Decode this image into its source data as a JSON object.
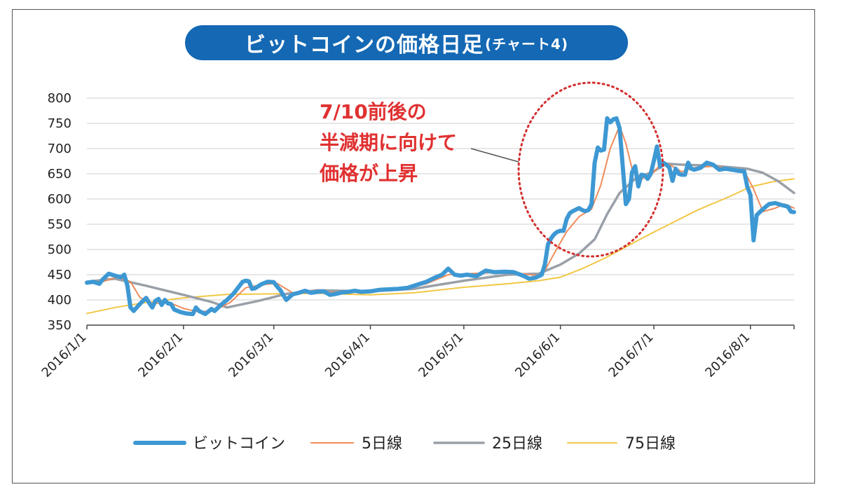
{
  "header": {
    "title": "ビットコインの価格日足",
    "subtitle": "(チャート4)",
    "color": "#1468b4"
  },
  "annotation": {
    "lines": [
      "7/10前後の",
      "半減期に向けて",
      "価格が上昇"
    ],
    "color": "#e03131"
  },
  "chart_data": {
    "type": "line",
    "title": "ビットコインの価格日足(チャート4)",
    "xlabel": "",
    "ylabel": "",
    "ylim": [
      350,
      800
    ],
    "yticks": [
      350,
      400,
      450,
      500,
      550,
      600,
      650,
      700,
      750,
      800
    ],
    "x_range": [
      "2016-01-01",
      "2016-08-15"
    ],
    "xticks": [
      {
        "date": "2016-01-01",
        "label": "2016/1/1"
      },
      {
        "date": "2016-02-01",
        "label": "2016/2/1"
      },
      {
        "date": "2016-03-01",
        "label": "2016/3/1"
      },
      {
        "date": "2016-04-01",
        "label": "2016/4/1"
      },
      {
        "date": "2016-05-01",
        "label": "2016/5/1"
      },
      {
        "date": "2016-06-01",
        "label": "2016/6/1"
      },
      {
        "date": "2016-07-01",
        "label": "2016/7/1"
      },
      {
        "date": "2016-08-01",
        "label": "2016/8/1"
      }
    ],
    "grid": true,
    "legend_position": "bottom",
    "series": [
      {
        "name": "ビットコイン",
        "color": "#3d98d3",
        "points": [
          [
            "2016-01-01",
            434
          ],
          [
            "2016-01-03",
            436
          ],
          [
            "2016-01-05",
            432
          ],
          [
            "2016-01-06",
            440
          ],
          [
            "2016-01-08",
            452
          ],
          [
            "2016-01-10",
            448
          ],
          [
            "2016-01-12",
            445
          ],
          [
            "2016-01-13",
            450
          ],
          [
            "2016-01-14",
            428
          ],
          [
            "2016-01-15",
            385
          ],
          [
            "2016-01-16",
            378
          ],
          [
            "2016-01-18",
            392
          ],
          [
            "2016-01-20",
            404
          ],
          [
            "2016-01-21",
            394
          ],
          [
            "2016-01-22",
            385
          ],
          [
            "2016-01-23",
            398
          ],
          [
            "2016-01-24",
            402
          ],
          [
            "2016-01-25",
            390
          ],
          [
            "2016-01-26",
            400
          ],
          [
            "2016-01-27",
            393
          ],
          [
            "2016-01-28",
            392
          ],
          [
            "2016-01-29",
            381
          ],
          [
            "2016-01-31",
            376
          ],
          [
            "2016-02-02",
            373
          ],
          [
            "2016-02-04",
            372
          ],
          [
            "2016-02-05",
            385
          ],
          [
            "2016-02-06",
            378
          ],
          [
            "2016-02-08",
            372
          ],
          [
            "2016-02-10",
            382
          ],
          [
            "2016-02-11",
            378
          ],
          [
            "2016-02-13",
            390
          ],
          [
            "2016-02-15",
            400
          ],
          [
            "2016-02-17",
            412
          ],
          [
            "2016-02-18",
            420
          ],
          [
            "2016-02-20",
            436
          ],
          [
            "2016-02-21",
            438
          ],
          [
            "2016-02-22",
            437
          ],
          [
            "2016-02-23",
            422
          ],
          [
            "2016-02-24",
            423
          ],
          [
            "2016-02-26",
            431
          ],
          [
            "2016-02-28",
            436
          ],
          [
            "2016-03-01",
            435
          ],
          [
            "2016-03-02",
            427
          ],
          [
            "2016-03-03",
            420
          ],
          [
            "2016-03-04",
            410
          ],
          [
            "2016-03-05",
            400
          ],
          [
            "2016-03-07",
            411
          ],
          [
            "2016-03-09",
            414
          ],
          [
            "2016-03-11",
            418
          ],
          [
            "2016-03-13",
            414
          ],
          [
            "2016-03-15",
            416
          ],
          [
            "2016-03-17",
            417
          ],
          [
            "2016-03-19",
            410
          ],
          [
            "2016-03-21",
            412
          ],
          [
            "2016-03-23",
            415
          ],
          [
            "2016-03-25",
            416
          ],
          [
            "2016-03-27",
            418
          ],
          [
            "2016-03-29",
            416
          ],
          [
            "2016-04-01",
            417
          ],
          [
            "2016-04-04",
            420
          ],
          [
            "2016-04-07",
            421
          ],
          [
            "2016-04-10",
            422
          ],
          [
            "2016-04-13",
            424
          ],
          [
            "2016-04-16",
            430
          ],
          [
            "2016-04-19",
            436
          ],
          [
            "2016-04-22",
            445
          ],
          [
            "2016-04-24",
            450
          ],
          [
            "2016-04-26",
            462
          ],
          [
            "2016-04-28",
            450
          ],
          [
            "2016-04-30",
            448
          ],
          [
            "2016-05-02",
            450
          ],
          [
            "2016-05-05",
            447
          ],
          [
            "2016-05-08",
            458
          ],
          [
            "2016-05-11",
            455
          ],
          [
            "2016-05-14",
            456
          ],
          [
            "2016-05-17",
            455
          ],
          [
            "2016-05-20",
            448
          ],
          [
            "2016-05-22",
            442
          ],
          [
            "2016-05-24",
            444
          ],
          [
            "2016-05-26",
            450
          ],
          [
            "2016-05-27",
            470
          ],
          [
            "2016-05-28",
            510
          ],
          [
            "2016-05-29",
            522
          ],
          [
            "2016-05-30",
            530
          ],
          [
            "2016-05-31",
            535
          ],
          [
            "2016-06-01",
            537
          ],
          [
            "2016-06-02",
            537
          ],
          [
            "2016-06-03",
            560
          ],
          [
            "2016-06-04",
            572
          ],
          [
            "2016-06-05",
            576
          ],
          [
            "2016-06-06",
            579
          ],
          [
            "2016-06-07",
            582
          ],
          [
            "2016-06-08",
            578
          ],
          [
            "2016-06-09",
            576
          ],
          [
            "2016-06-10",
            578
          ],
          [
            "2016-06-11",
            590
          ],
          [
            "2016-06-12",
            672
          ],
          [
            "2016-06-13",
            702
          ],
          [
            "2016-06-14",
            696
          ],
          [
            "2016-06-15",
            698
          ],
          [
            "2016-06-16",
            760
          ],
          [
            "2016-06-17",
            752
          ],
          [
            "2016-06-18",
            758
          ],
          [
            "2016-06-19",
            760
          ],
          [
            "2016-06-20",
            740
          ],
          [
            "2016-06-21",
            666
          ],
          [
            "2016-06-22",
            590
          ],
          [
            "2016-06-23",
            600
          ],
          [
            "2016-06-24",
            653
          ],
          [
            "2016-06-25",
            665
          ],
          [
            "2016-06-26",
            625
          ],
          [
            "2016-06-27",
            648
          ],
          [
            "2016-06-28",
            647
          ],
          [
            "2016-06-29",
            640
          ],
          [
            "2016-06-30",
            650
          ],
          [
            "2016-07-01",
            676
          ],
          [
            "2016-07-02",
            704
          ],
          [
            "2016-07-03",
            664
          ],
          [
            "2016-07-04",
            672
          ],
          [
            "2016-07-05",
            668
          ],
          [
            "2016-07-06",
            662
          ],
          [
            "2016-07-07",
            636
          ],
          [
            "2016-07-08",
            660
          ],
          [
            "2016-07-09",
            650
          ],
          [
            "2016-07-10",
            648
          ],
          [
            "2016-07-11",
            648
          ],
          [
            "2016-07-12",
            672
          ],
          [
            "2016-07-13",
            660
          ],
          [
            "2016-07-14",
            658
          ],
          [
            "2016-07-16",
            662
          ],
          [
            "2016-07-18",
            672
          ],
          [
            "2016-07-20",
            668
          ],
          [
            "2016-07-22",
            658
          ],
          [
            "2016-07-24",
            660
          ],
          [
            "2016-07-26",
            658
          ],
          [
            "2016-07-28",
            656
          ],
          [
            "2016-07-30",
            655
          ],
          [
            "2016-07-31",
            624
          ],
          [
            "2016-08-01",
            608
          ],
          [
            "2016-08-02",
            518
          ],
          [
            "2016-08-03",
            568
          ],
          [
            "2016-08-04",
            574
          ],
          [
            "2016-08-05",
            580
          ],
          [
            "2016-08-06",
            585
          ],
          [
            "2016-08-07",
            590
          ],
          [
            "2016-08-09",
            592
          ],
          [
            "2016-08-11",
            588
          ],
          [
            "2016-08-13",
            585
          ],
          [
            "2016-08-14",
            575
          ],
          [
            "2016-08-15",
            574
          ]
        ]
      },
      {
        "name": "5日線",
        "color": "#ef8b5a",
        "points": [
          [
            "2016-01-01",
            432
          ],
          [
            "2016-01-06",
            436
          ],
          [
            "2016-01-11",
            446
          ],
          [
            "2016-01-15",
            436
          ],
          [
            "2016-01-18",
            405
          ],
          [
            "2016-01-22",
            392
          ],
          [
            "2016-01-27",
            396
          ],
          [
            "2016-02-01",
            383
          ],
          [
            "2016-02-06",
            376
          ],
          [
            "2016-02-11",
            379
          ],
          [
            "2016-02-16",
            395
          ],
          [
            "2016-02-21",
            424
          ],
          [
            "2016-02-26",
            430
          ],
          [
            "2016-03-02",
            433
          ],
          [
            "2016-03-07",
            414
          ],
          [
            "2016-03-12",
            414
          ],
          [
            "2016-03-20",
            415
          ],
          [
            "2016-04-01",
            417
          ],
          [
            "2016-04-10",
            421
          ],
          [
            "2016-04-19",
            432
          ],
          [
            "2016-04-26",
            450
          ],
          [
            "2016-05-02",
            452
          ],
          [
            "2016-05-10",
            454
          ],
          [
            "2016-05-20",
            452
          ],
          [
            "2016-05-26",
            447
          ],
          [
            "2016-05-30",
            492
          ],
          [
            "2016-06-03",
            535
          ],
          [
            "2016-06-07",
            565
          ],
          [
            "2016-06-11",
            580
          ],
          [
            "2016-06-14",
            628
          ],
          [
            "2016-06-17",
            700
          ],
          [
            "2016-06-20",
            745
          ],
          [
            "2016-06-22",
            710
          ],
          [
            "2016-06-24",
            660
          ],
          [
            "2016-06-27",
            640
          ],
          [
            "2016-06-30",
            646
          ],
          [
            "2016-07-03",
            668
          ],
          [
            "2016-07-06",
            668
          ],
          [
            "2016-07-10",
            654
          ],
          [
            "2016-07-14",
            662
          ],
          [
            "2016-07-20",
            665
          ],
          [
            "2016-07-26",
            660
          ],
          [
            "2016-07-30",
            656
          ],
          [
            "2016-08-02",
            620
          ],
          [
            "2016-08-05",
            575
          ],
          [
            "2016-08-09",
            582
          ],
          [
            "2016-08-12",
            590
          ],
          [
            "2016-08-15",
            582
          ]
        ]
      },
      {
        "name": "25日線",
        "color": "#9aa0a8",
        "points": [
          [
            "2016-01-01",
            436
          ],
          [
            "2016-01-10",
            442
          ],
          [
            "2016-01-20",
            428
          ],
          [
            "2016-02-01",
            410
          ],
          [
            "2016-02-10",
            396
          ],
          [
            "2016-02-15",
            385
          ],
          [
            "2016-02-25",
            398
          ],
          [
            "2016-03-05",
            412
          ],
          [
            "2016-03-15",
            419
          ],
          [
            "2016-04-01",
            417
          ],
          [
            "2016-04-15",
            422
          ],
          [
            "2016-05-01",
            438
          ],
          [
            "2016-05-15",
            450
          ],
          [
            "2016-05-25",
            452
          ],
          [
            "2016-06-01",
            470
          ],
          [
            "2016-06-07",
            492
          ],
          [
            "2016-06-12",
            520
          ],
          [
            "2016-06-16",
            570
          ],
          [
            "2016-06-20",
            612
          ],
          [
            "2016-06-25",
            640
          ],
          [
            "2016-07-01",
            655
          ],
          [
            "2016-07-05",
            670
          ],
          [
            "2016-07-10",
            668
          ],
          [
            "2016-07-20",
            666
          ],
          [
            "2016-07-31",
            660
          ],
          [
            "2016-08-05",
            652
          ],
          [
            "2016-08-10",
            635
          ],
          [
            "2016-08-15",
            612
          ]
        ]
      },
      {
        "name": "75日線",
        "color": "#f2c745",
        "points": [
          [
            "2016-01-01",
            373
          ],
          [
            "2016-01-10",
            385
          ],
          [
            "2016-01-20",
            395
          ],
          [
            "2016-02-01",
            404
          ],
          [
            "2016-02-15",
            411
          ],
          [
            "2016-03-01",
            412
          ],
          [
            "2016-03-15",
            413
          ],
          [
            "2016-04-01",
            410
          ],
          [
            "2016-04-15",
            414
          ],
          [
            "2016-05-01",
            425
          ],
          [
            "2016-05-15",
            432
          ],
          [
            "2016-05-25",
            438
          ],
          [
            "2016-06-01",
            445
          ],
          [
            "2016-06-08",
            462
          ],
          [
            "2016-06-15",
            482
          ],
          [
            "2016-06-22",
            505
          ],
          [
            "2016-06-29",
            528
          ],
          [
            "2016-07-06",
            550
          ],
          [
            "2016-07-15",
            578
          ],
          [
            "2016-07-25",
            604
          ],
          [
            "2016-08-01",
            624
          ],
          [
            "2016-08-08",
            634
          ],
          [
            "2016-08-15",
            640
          ]
        ]
      }
    ]
  }
}
